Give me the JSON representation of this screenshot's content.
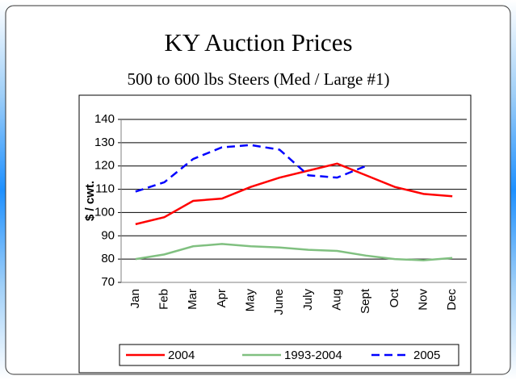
{
  "chart_data": {
    "type": "line",
    "title": "KY Auction Prices",
    "subtitle": "500 to 600 lbs Steers (Med / Large #1)",
    "y_label": "$ / cwt.",
    "categories": [
      "Jan",
      "Feb",
      "Mar",
      "Apr",
      "May",
      "June",
      "July",
      "Aug",
      "Sept",
      "Oct",
      "Nov",
      "Dec"
    ],
    "series": [
      {
        "name": "2004",
        "color": "#ff0000",
        "line_style": "solid",
        "values": [
          95,
          98,
          105,
          106,
          111,
          115,
          118,
          121,
          116,
          111,
          108,
          107
        ]
      },
      {
        "name": "1993-2004",
        "color": "#80c080",
        "line_style": "solid",
        "values": [
          80,
          82,
          85.5,
          86.5,
          85.5,
          85,
          84,
          83.5,
          81.5,
          80,
          79.5,
          80.5
        ]
      },
      {
        "name": "2005",
        "color": "#0000ff",
        "line_style": "dashed",
        "values": [
          109,
          113,
          123,
          128,
          129,
          127,
          116,
          115,
          120,
          null,
          null,
          null
        ]
      }
    ],
    "ylim": [
      70,
      140
    ],
    "yticks": [
      70,
      80,
      90,
      100,
      110,
      120,
      130,
      140
    ],
    "grid": true,
    "legend": "bottom"
  }
}
